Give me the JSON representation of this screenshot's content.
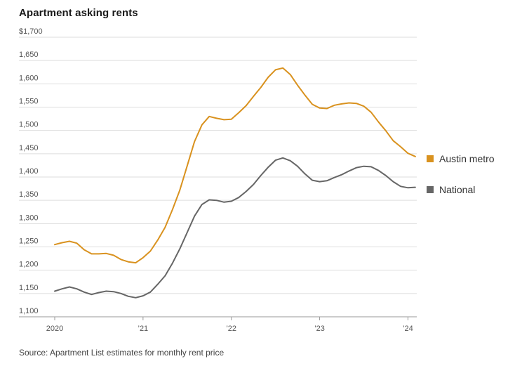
{
  "title": "Apartment asking rents",
  "source": "Source: Apartment List estimates for monthly rent price",
  "chart_data": {
    "type": "line",
    "title": "Apartment asking rents",
    "xlabel": "",
    "ylabel": "",
    "ylim": [
      1100,
      1700
    ],
    "xlim": [
      2020.0,
      2024.1
    ],
    "grid": true,
    "legend_position": "right",
    "y_ticks": [
      {
        "value": 1700,
        "label": "$1,700"
      },
      {
        "value": 1650,
        "label": "1,650"
      },
      {
        "value": 1600,
        "label": "1,600"
      },
      {
        "value": 1550,
        "label": "1,550"
      },
      {
        "value": 1500,
        "label": "1,500"
      },
      {
        "value": 1450,
        "label": "1,450"
      },
      {
        "value": 1400,
        "label": "1,400"
      },
      {
        "value": 1350,
        "label": "1,350"
      },
      {
        "value": 1300,
        "label": "1,300"
      },
      {
        "value": 1250,
        "label": "1,250"
      },
      {
        "value": 1200,
        "label": "1,200"
      },
      {
        "value": 1150,
        "label": "1,150"
      },
      {
        "value": 1100,
        "label": "1,100"
      }
    ],
    "x_ticks": [
      {
        "value": 2020,
        "label": "2020"
      },
      {
        "value": 2021,
        "label": "’21"
      },
      {
        "value": 2022,
        "label": "’22"
      },
      {
        "value": 2023,
        "label": "’23"
      },
      {
        "value": 2024,
        "label": "’24"
      }
    ],
    "x": [
      2020.0,
      2020.083,
      2020.167,
      2020.25,
      2020.333,
      2020.417,
      2020.5,
      2020.583,
      2020.667,
      2020.75,
      2020.833,
      2020.917,
      2021.0,
      2021.083,
      2021.167,
      2021.25,
      2021.333,
      2021.417,
      2021.5,
      2021.583,
      2021.667,
      2021.75,
      2021.833,
      2021.917,
      2022.0,
      2022.083,
      2022.167,
      2022.25,
      2022.333,
      2022.417,
      2022.5,
      2022.583,
      2022.667,
      2022.75,
      2022.833,
      2022.917,
      2023.0,
      2023.083,
      2023.167,
      2023.25,
      2023.333,
      2023.417,
      2023.5,
      2023.583,
      2023.667,
      2023.75,
      2023.833,
      2023.917,
      2024.0,
      2024.083
    ],
    "series": [
      {
        "name": "Austin metro",
        "color": "#d9921f",
        "values": [
          1255,
          1259,
          1262,
          1258,
          1244,
          1235,
          1235,
          1236,
          1232,
          1223,
          1218,
          1216,
          1227,
          1241,
          1265,
          1292,
          1330,
          1372,
          1424,
          1476,
          1512,
          1530,
          1526,
          1523,
          1524,
          1538,
          1553,
          1573,
          1592,
          1614,
          1630,
          1634,
          1620,
          1597,
          1576,
          1556,
          1548,
          1547,
          1554,
          1557,
          1559,
          1558,
          1552,
          1539,
          1518,
          1499,
          1478,
          1465,
          1451,
          1444
        ]
      },
      {
        "name": "National",
        "color": "#666666",
        "values": [
          1155,
          1160,
          1164,
          1160,
          1153,
          1148,
          1152,
          1155,
          1154,
          1150,
          1144,
          1141,
          1145,
          1153,
          1170,
          1188,
          1215,
          1246,
          1281,
          1316,
          1341,
          1351,
          1350,
          1346,
          1348,
          1356,
          1369,
          1384,
          1403,
          1421,
          1436,
          1441,
          1435,
          1423,
          1407,
          1393,
          1390,
          1392,
          1399,
          1405,
          1413,
          1420,
          1423,
          1422,
          1414,
          1403,
          1390,
          1380,
          1377,
          1378
        ]
      }
    ]
  }
}
